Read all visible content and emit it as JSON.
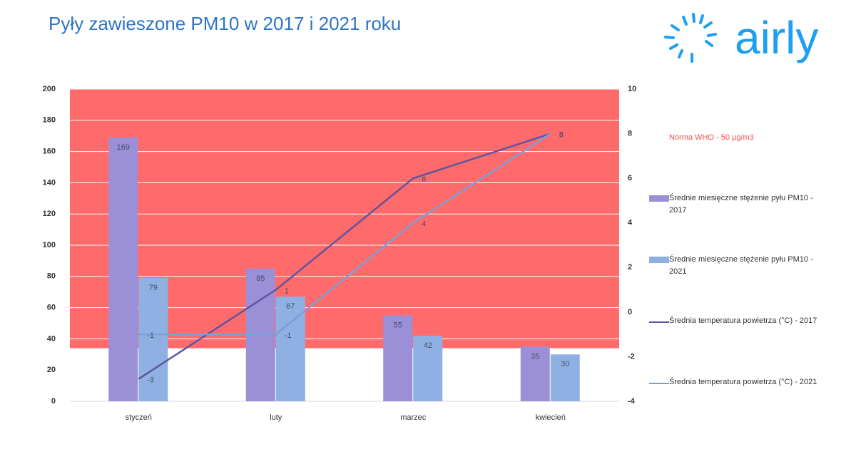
{
  "brand": "airly",
  "chart_data": {
    "type": "bar",
    "title": "Pyły zawieszone PM10 w 2017 i 2021 roku",
    "categories": [
      "styczeń",
      "luty",
      "marzec",
      "kwiecień"
    ],
    "series": [
      {
        "name": "Średnie miesięczne stężenie pyłu PM10 - 2017",
        "type": "bar",
        "color": "#9b8fd8",
        "values": [
          169,
          85,
          55,
          35
        ]
      },
      {
        "name": "Średnie miesięczne stężenie pyłu PM10 - 2021",
        "type": "bar",
        "color": "#8fb0e3",
        "values": [
          79,
          67,
          42,
          30
        ]
      },
      {
        "name": "Średnia temperatura powietrza (°C) - 2017",
        "type": "line",
        "axis": "y2",
        "color": "#5e55a3",
        "values": [
          -3,
          1,
          6,
          8
        ]
      },
      {
        "name": "Średnia temperatura powietrza (°C) - 2021",
        "type": "line",
        "axis": "y2",
        "color": "#7d9fd8",
        "values": [
          -1,
          -1,
          4,
          8
        ]
      }
    ],
    "ylim": [
      0,
      200
    ],
    "yticks": [
      0,
      20,
      40,
      60,
      80,
      100,
      120,
      140,
      160,
      180,
      200
    ],
    "y2lim": [
      -4,
      10
    ],
    "y2ticks": [
      -4,
      -2,
      0,
      2,
      4,
      6,
      8,
      10
    ],
    "band": {
      "from": 34,
      "to": 200,
      "color": "#ff6b6b"
    },
    "annotation": "Norma WHO - 50 µg/m3",
    "grid": true
  }
}
